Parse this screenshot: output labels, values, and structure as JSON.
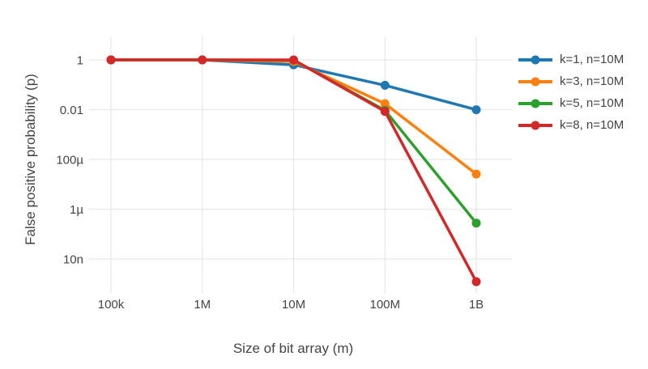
{
  "chart_data": {
    "type": "line",
    "title": "",
    "xlabel": "Size of bit array (m)",
    "ylabel": "False positive probability (p)",
    "x_scale": "log",
    "y_scale": "log",
    "grid": true,
    "legend_position": "right",
    "x_range_log10": [
      4.78,
      9.37
    ],
    "y_range_log10": [
      0.95,
      -9.4
    ],
    "colors": {
      "grid": "#e8e8e8",
      "text": "#444444",
      "background": "#ffffff"
    },
    "x_ticks": [
      {
        "value": 100000,
        "label": "100k"
      },
      {
        "value": 1000000,
        "label": "1M"
      },
      {
        "value": 10000000,
        "label": "10M"
      },
      {
        "value": 100000000,
        "label": "100M"
      },
      {
        "value": 1000000000,
        "label": "1B"
      }
    ],
    "y_ticks": [
      {
        "value": 1,
        "label": "1"
      },
      {
        "value": 0.01,
        "label": "0.01"
      },
      {
        "value": 0.0001,
        "label": "100µ"
      },
      {
        "value": 1e-06,
        "label": "1µ"
      },
      {
        "value": 1e-08,
        "label": "10n"
      }
    ],
    "x": [
      100000,
      1000000,
      10000000,
      100000000,
      1000000000
    ],
    "series": [
      {
        "name": "k=1, n=10M",
        "color": "#1f77b4",
        "values": [
          1,
          0.99995,
          0.632,
          0.0952,
          0.00995
        ]
      },
      {
        "name": "k=3, n=10M",
        "color": "#ff7f0e",
        "values": [
          1,
          1,
          0.858,
          0.0174,
          2.58e-05
        ]
      },
      {
        "name": "k=5, n=10M",
        "color": "#2ca02c",
        "values": [
          1,
          1,
          0.967,
          0.00943,
          2.76e-07
        ]
      },
      {
        "name": "k=8, n=10M",
        "color": "#d62728",
        "values": [
          1,
          1,
          0.997,
          0.00846,
          1.22e-09
        ]
      }
    ]
  }
}
